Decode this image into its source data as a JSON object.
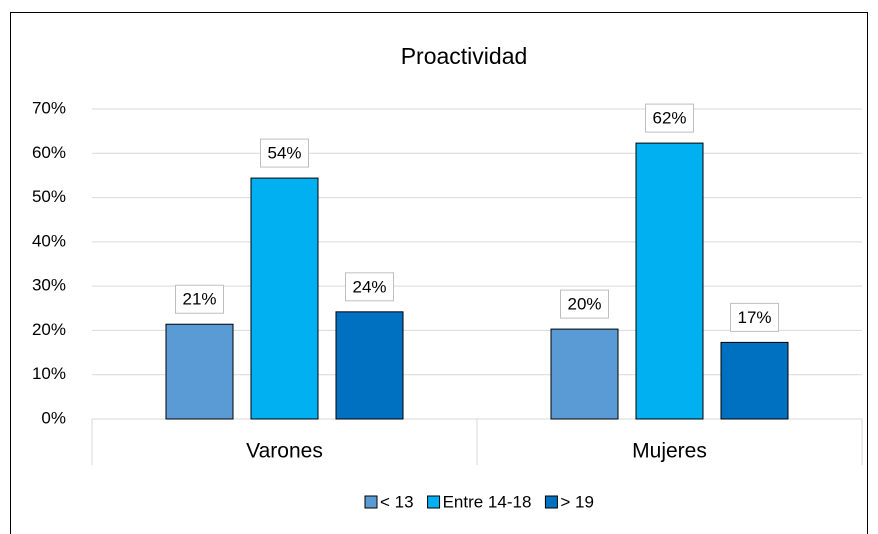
{
  "chart_data": {
    "type": "bar",
    "title": "Proactividad",
    "categories": [
      "Varones",
      "Mujeres"
    ],
    "series": [
      {
        "name": "< 13",
        "color": "#5b9bd5",
        "values": [
          21.4,
          20.3
        ],
        "value_labels": [
          "21%",
          "20%"
        ]
      },
      {
        "name": "Entre 14-18",
        "color": "#00b0f0",
        "values": [
          54.4,
          62.3
        ],
        "value_labels": [
          "54%",
          "62%"
        ]
      },
      {
        "name": "> 19",
        "color": "#0070c0",
        "values": [
          24.2,
          17.3
        ],
        "value_labels": [
          "24%",
          "17%"
        ]
      }
    ],
    "ylim": [
      0,
      70
    ],
    "yticks": [
      {
        "value": 0,
        "label": "0%"
      },
      {
        "value": 10,
        "label": "10%"
      },
      {
        "value": 20,
        "label": "20%"
      },
      {
        "value": 30,
        "label": "30%"
      },
      {
        "value": 40,
        "label": "40%"
      },
      {
        "value": 50,
        "label": "50%"
      },
      {
        "value": 60,
        "label": "60%"
      },
      {
        "value": 70,
        "label": "70%"
      }
    ],
    "grid": true,
    "legend": "bottom"
  }
}
